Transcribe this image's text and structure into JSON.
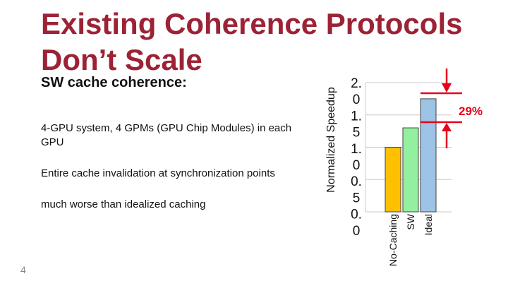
{
  "slide": {
    "title": "Existing Coherence Protocols Don’t Scale",
    "bullets": {
      "heading": "SW cache coherence:",
      "items": [
        "4-GPU system, 4 GPMs (GPU Chip Modules) in each GPU",
        "Entire cache invalidation at synchronization points",
        "much worse than idealized caching"
      ]
    },
    "slide_number": "4"
  },
  "chart_data": {
    "type": "bar",
    "ylabel": "Normalized Speedup",
    "yticks": [
      "2.0",
      "1.5",
      "1.0",
      "0.5",
      "0.0"
    ],
    "ylim": [
      0,
      2
    ],
    "categories": [
      "No-Caching",
      "SW",
      "Ideal"
    ],
    "values": [
      1.0,
      1.3,
      1.75
    ],
    "colors": [
      "#ffc000",
      "#92f0a0",
      "#9dc3e6"
    ],
    "annotation": {
      "text": "29%",
      "color": "#e8001c"
    }
  }
}
